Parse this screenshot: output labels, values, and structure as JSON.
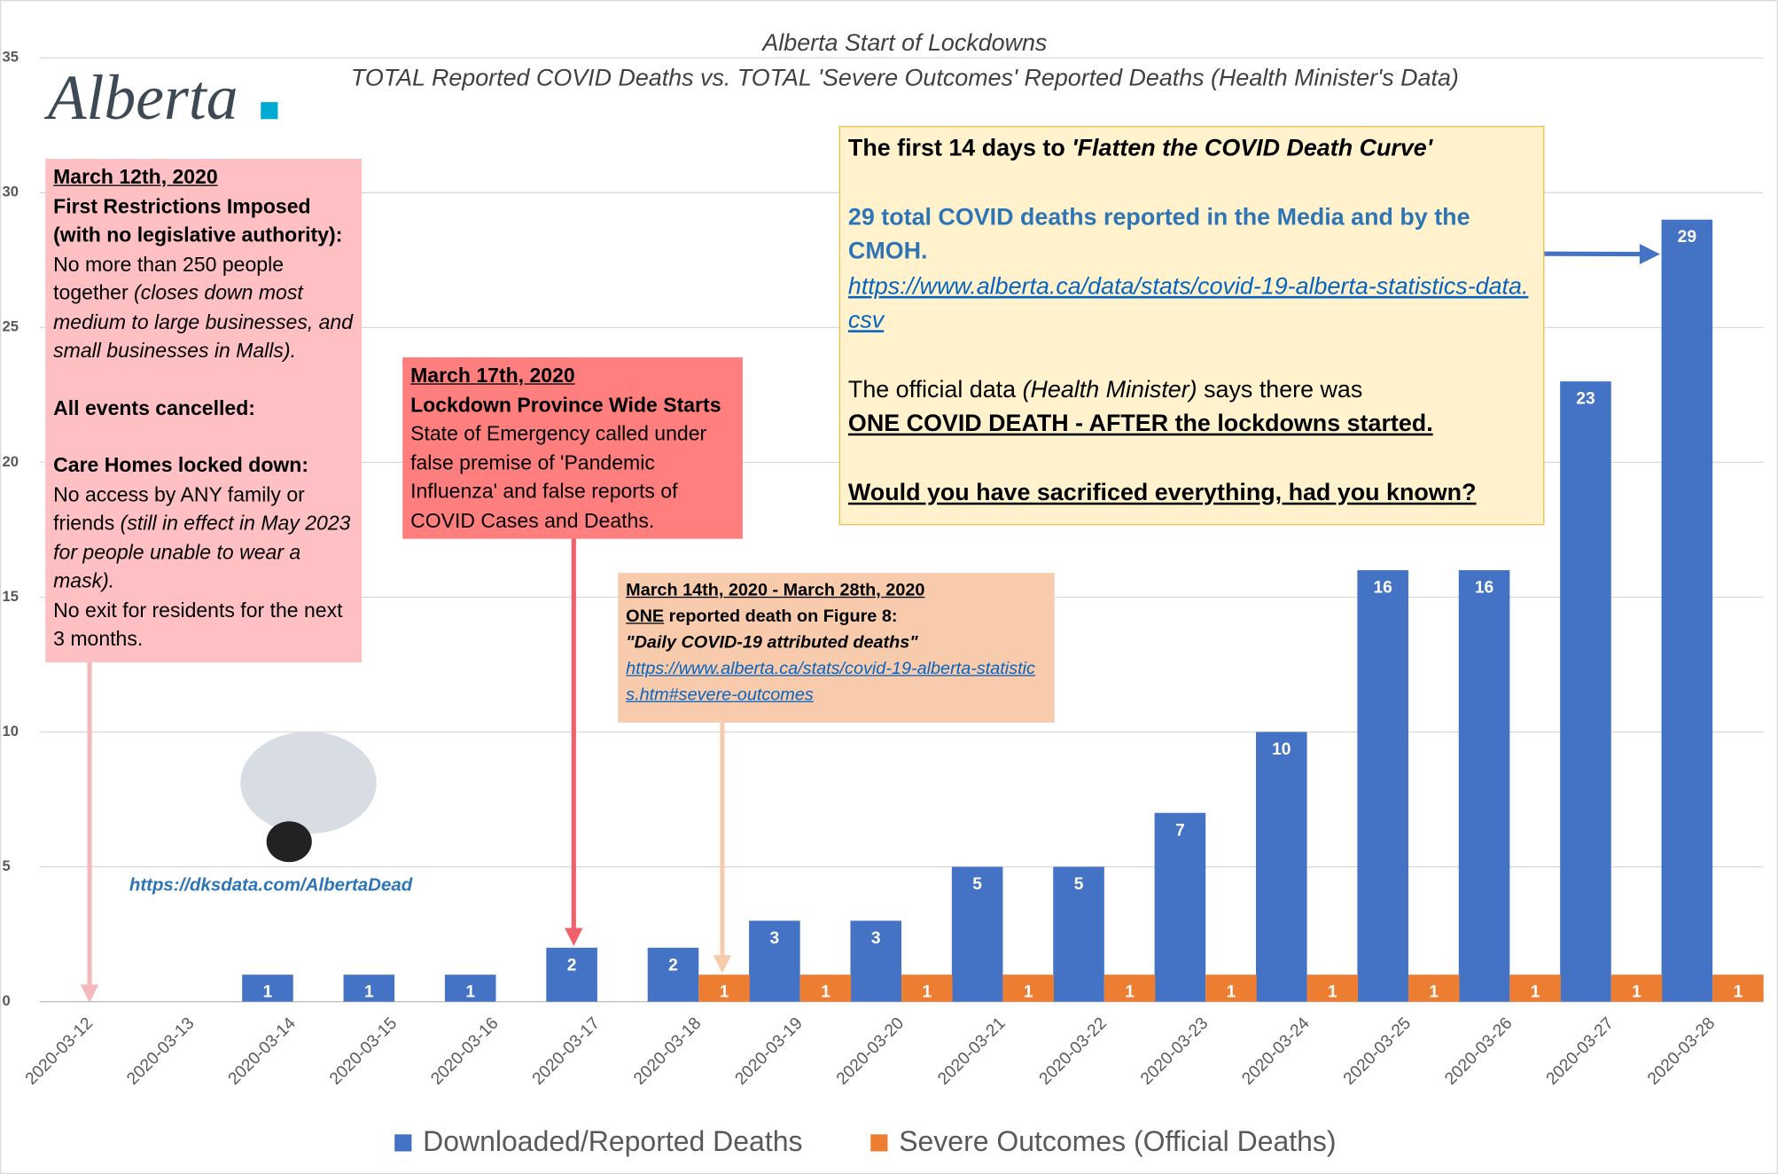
{
  "chart_data": {
    "type": "bar",
    "title": "Alberta Start of Lockdowns",
    "subtitle": "TOTAL Reported COVID Deaths vs. TOTAL 'Severe Outcomes' Reported Deaths (Health Minister's Data)",
    "categories": [
      "2020-03-12",
      "2020-03-13",
      "2020-03-14",
      "2020-03-15",
      "2020-03-16",
      "2020-03-17",
      "2020-03-18",
      "2020-03-19",
      "2020-03-20",
      "2020-03-21",
      "2020-03-22",
      "2020-03-23",
      "2020-03-24",
      "2020-03-25",
      "2020-03-26",
      "2020-03-27",
      "2020-03-28"
    ],
    "series": [
      {
        "name": "Downloaded/Reported Deaths",
        "color": "#4472c4",
        "values": [
          null,
          null,
          1,
          1,
          1,
          2,
          2,
          3,
          3,
          5,
          5,
          7,
          10,
          16,
          16,
          23,
          29
        ]
      },
      {
        "name": "Severe Outcomes (Official Deaths)",
        "color": "#ed7d31",
        "values": [
          null,
          null,
          null,
          null,
          null,
          null,
          1,
          1,
          1,
          1,
          1,
          1,
          1,
          1,
          1,
          1,
          1
        ]
      }
    ],
    "ylim": [
      0,
      35
    ],
    "yticks": [
      0,
      5,
      10,
      15,
      20,
      25,
      30,
      35
    ],
    "grid": true,
    "legend": "bottom"
  },
  "logo": "Alberta",
  "website": "https://dksdata.com/AlbertaDead",
  "box1": [
    "March 12th, 2020",
    "First Restrictions Imposed",
    "(with no legislative authority):",
    "No more than 250 people together",
    "(closes down most medium to large businesses, and small businesses in Malls).",
    "All events cancelled:",
    "Care Homes locked down:",
    "No access by ANY family or friends",
    "(still in effect in May 2023 for people unable to wear a mask).",
    "No exit for residents for the next 3 months."
  ],
  "box2": [
    "March 17th, 2020",
    "Lockdown Province Wide Starts",
    "State of Emergency called under false premise of 'Pandemic Influenza' and false reports of COVID Cases and Deaths."
  ],
  "box3": [
    "March 14th, 2020 - March 28th, 2020",
    "ONE",
    "reported death on Figure 8:",
    "\"Daily COVID-19 attributed deaths\"",
    "https://www.alberta.ca/stats/covid-19-alberta-statistics.htm#severe-outcomes"
  ],
  "box4": [
    "The first 14 days to",
    "'Flatten the COVID Death Curve'",
    "29 total COVID deaths reported in the Media and by the CMOH.",
    "https://www.alberta.ca/data/stats/covid-19-alberta-statistics-data.csv",
    "The official data",
    "(Health Minister)",
    "says there was",
    "ONE COVID DEATH - AFTER the lockdowns started.",
    "Would you have sacrificed everything, had you known?"
  ]
}
